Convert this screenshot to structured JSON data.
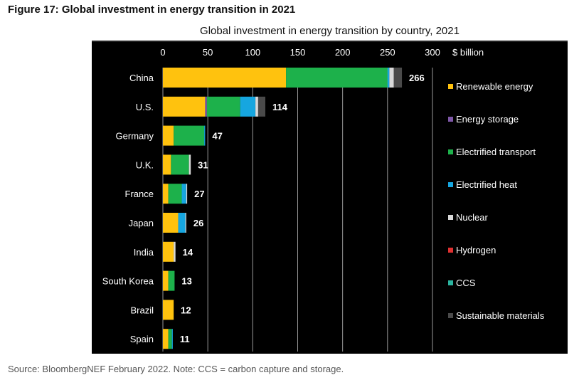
{
  "figure_title": "Figure 17: Global investment in energy transition in 2021",
  "source": "Source: BloombergNEF February 2022. Note: CCS = carbon capture and storage.",
  "chart_data": {
    "type": "bar",
    "orientation": "horizontal",
    "stacked": true,
    "title": "Global investment in energy transition by country, 2021",
    "xlabel": "$ billion",
    "ylabel": "",
    "xlim": [
      0,
      300
    ],
    "xticks": [
      0,
      50,
      100,
      150,
      200,
      250,
      300
    ],
    "grid": true,
    "legend_position": "right",
    "categories": [
      "China",
      "U.S.",
      "Germany",
      "U.K.",
      "France",
      "Japan",
      "India",
      "South Korea",
      "Brazil",
      "Spain"
    ],
    "totals": [
      266,
      114,
      47,
      31,
      27,
      26,
      14,
      13,
      12,
      11
    ],
    "series": [
      {
        "name": "Renewable energy",
        "color": "#FFC20E",
        "values": [
          137,
          47,
          12,
          9,
          6,
          17,
          12,
          6,
          12,
          6
        ]
      },
      {
        "name": "Energy storage",
        "color": "#7E57A8",
        "values": [
          0,
          2,
          0,
          0,
          0,
          0,
          0,
          0,
          0,
          0
        ]
      },
      {
        "name": "Electrified transport",
        "color": "#1DB14B",
        "values": [
          113,
          37,
          34,
          20,
          15,
          0,
          0,
          7,
          0,
          4
        ]
      },
      {
        "name": "Electrified heat",
        "color": "#16A6E0",
        "values": [
          2,
          17,
          1,
          0,
          5,
          8,
          0,
          0,
          0,
          1
        ]
      },
      {
        "name": "Nuclear",
        "color": "#D9D9D9",
        "values": [
          5,
          3,
          0,
          2,
          1,
          1,
          2,
          0,
          0,
          0
        ]
      },
      {
        "name": "Hydrogen",
        "color": "#E03131",
        "values": [
          0,
          0,
          0,
          0,
          0,
          0,
          0,
          0,
          0,
          0
        ]
      },
      {
        "name": "CCS",
        "color": "#2BB5A0",
        "values": [
          0,
          0,
          0,
          0,
          0,
          0,
          0,
          0,
          0,
          0
        ]
      },
      {
        "name": "Sustainable materials",
        "color": "#4A4A4A",
        "values": [
          9,
          8,
          0,
          0,
          0,
          0,
          0,
          0,
          0,
          0
        ]
      }
    ]
  }
}
